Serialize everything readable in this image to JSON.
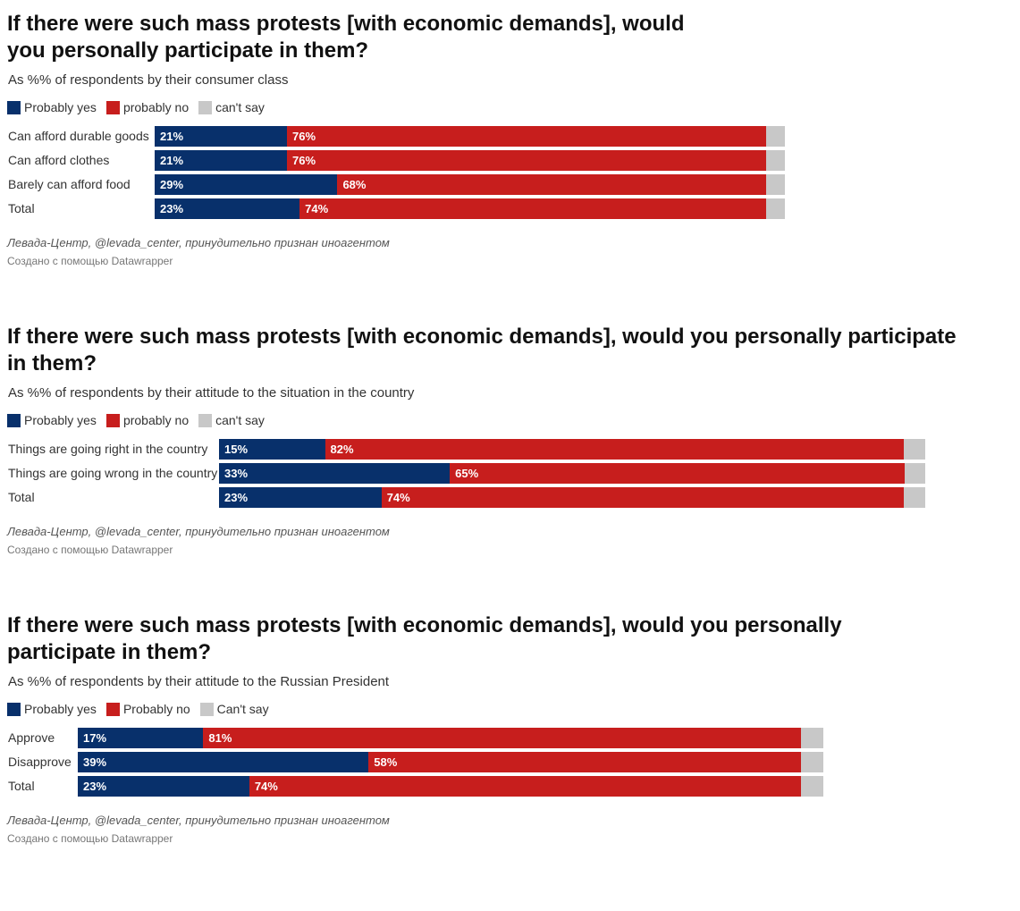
{
  "legend_colors": {
    "yes": "#08306b",
    "no": "#c71e1d",
    "cant": "#c8c8c8"
  },
  "chart_data": [
    {
      "type": "bar",
      "orientation": "horizontal",
      "stacked": true,
      "title": "If there were such mass protests [with economic demands], would you personally participate in them?",
      "subtitle": "As %% of respondents by their consumer class",
      "legend": [
        "Probably yes",
        "probably no",
        "can't say"
      ],
      "categories": [
        "Can afford durable goods",
        "Can afford clothes",
        "Barely can afford food",
        "Total"
      ],
      "series": [
        {
          "name": "Probably yes",
          "values": [
            21,
            21,
            29,
            23
          ],
          "labels": [
            "21%",
            "21%",
            "29%",
            "23%"
          ]
        },
        {
          "name": "probably no",
          "values": [
            76,
            76,
            68,
            74
          ],
          "labels": [
            "76%",
            "76%",
            "68%",
            "74%"
          ]
        },
        {
          "name": "can't say",
          "values": [
            3,
            3,
            3,
            3
          ]
        }
      ],
      "xlim": [
        0,
        100
      ],
      "source": "Левада-Центр, @levada_center, принудительно признан иноагентом",
      "credit": "Создано с помощью Datawrapper"
    },
    {
      "type": "bar",
      "orientation": "horizontal",
      "stacked": true,
      "title": "If there were such mass protests [with economic demands], would you personally participate in them?",
      "subtitle": "As %% of respondents by their attitude to the situation in the country",
      "legend": [
        "Probably yes",
        "probably no",
        "can't say"
      ],
      "categories": [
        "Things are going right in the country",
        "Things are going wrong in the country",
        "Total"
      ],
      "series": [
        {
          "name": "Probably yes",
          "values": [
            15,
            33,
            23
          ],
          "labels": [
            "15%",
            "33%",
            "23%"
          ]
        },
        {
          "name": "probably no",
          "values": [
            82,
            65,
            74
          ],
          "labels": [
            "82%",
            "65%",
            "74%"
          ]
        },
        {
          "name": "can't say",
          "values": [
            3,
            3,
            3
          ]
        }
      ],
      "xlim": [
        0,
        100
      ],
      "source": "Левада-Центр, @levada_center, принудительно признан иноагентом",
      "credit": "Создано с помощью Datawrapper"
    },
    {
      "type": "bar",
      "orientation": "horizontal",
      "stacked": true,
      "title": "If there were such mass protests [with economic demands], would you personally participate in them?",
      "subtitle": "As %% of respondents by their attitude to the Russian President",
      "legend": [
        "Probably yes",
        "Probably no",
        "Can't say"
      ],
      "categories": [
        "Approve",
        "Disapprove",
        "Total"
      ],
      "series": [
        {
          "name": "Probably yes",
          "values": [
            17,
            39,
            23
          ],
          "labels": [
            "17%",
            "39%",
            "23%"
          ]
        },
        {
          "name": "Probably no",
          "values": [
            81,
            58,
            74
          ],
          "labels": [
            "81%",
            "58%",
            "74%"
          ]
        },
        {
          "name": "Can't say",
          "values": [
            3,
            3,
            3
          ]
        }
      ],
      "xlim": [
        0,
        100
      ],
      "source": "Левада-Центр, @levada_center, принудительно признан иноагентом",
      "credit": "Создано с помощью Datawrapper"
    }
  ]
}
